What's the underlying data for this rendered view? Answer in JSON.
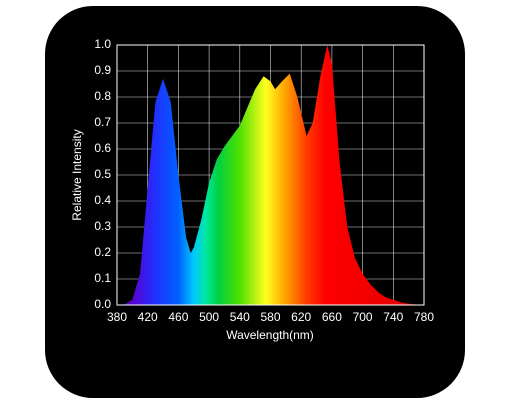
{
  "chart_data": {
    "type": "area",
    "x_label": "Wavelength(nm)",
    "y_label": "Relative Intensity",
    "x": [
      380,
      390,
      400,
      410,
      420,
      430,
      440,
      450,
      460,
      470,
      476,
      480,
      490,
      500,
      510,
      520,
      530,
      540,
      550,
      560,
      571,
      580,
      586,
      595,
      605,
      615,
      627,
      635,
      645,
      654,
      660,
      670,
      680,
      690,
      700,
      710,
      720,
      730,
      740,
      750,
      760,
      770,
      780
    ],
    "values": [
      0,
      0.003,
      0.02,
      0.12,
      0.45,
      0.78,
      0.87,
      0.78,
      0.5,
      0.26,
      0.2,
      0.22,
      0.33,
      0.47,
      0.56,
      0.61,
      0.65,
      0.69,
      0.76,
      0.83,
      0.88,
      0.86,
      0.83,
      0.86,
      0.89,
      0.8,
      0.65,
      0.7,
      0.88,
      1.0,
      0.93,
      0.55,
      0.3,
      0.18,
      0.12,
      0.08,
      0.05,
      0.03,
      0.02,
      0.01,
      0.005,
      0.002,
      0
    ],
    "xlim": [
      380,
      780
    ],
    "xticks": [
      380,
      420,
      460,
      500,
      540,
      580,
      620,
      660,
      700,
      740,
      780
    ],
    "ylim": [
      0,
      1
    ],
    "yticks": [
      {
        "value": 0,
        "label": "0.0"
      },
      0.1,
      0.2,
      0.3,
      0.4,
      0.5,
      0.6,
      0.7,
      0.8,
      0.9,
      {
        "value": 1,
        "label": "1.0"
      }
    ],
    "grid": true
  }
}
